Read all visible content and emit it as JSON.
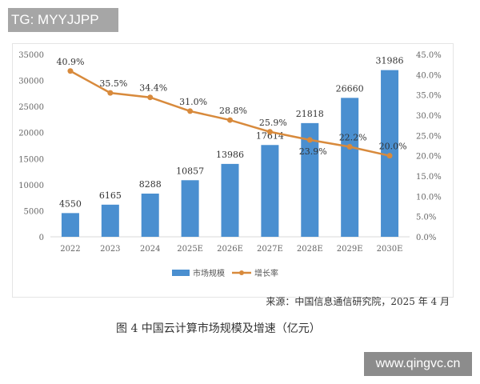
{
  "overlay": {
    "tg_label": "TG: MYYJJPP",
    "site_watermark": "www.qingvc.cn"
  },
  "chart_data": {
    "type": "bar+line",
    "categories": [
      "2022",
      "2023",
      "2024",
      "2025E",
      "2026E",
      "2027E",
      "2028E",
      "2029E",
      "2030E"
    ],
    "series": [
      {
        "name": "市场规模",
        "type": "bar",
        "axis": "left",
        "color": "#4a8fd0",
        "values": [
          4550,
          6165,
          8288,
          10857,
          13986,
          17614,
          21818,
          26660,
          31986
        ]
      },
      {
        "name": "增长率",
        "type": "line",
        "axis": "right",
        "color": "#d88a3c",
        "values": [
          40.9,
          35.5,
          34.4,
          31.0,
          28.8,
          25.9,
          23.9,
          22.2,
          20.0
        ],
        "labels": [
          "40.9%",
          "35.5%",
          "34.4%",
          "31.0%",
          "28.8%",
          "25.9%",
          "23.9%",
          "22.2%",
          "20.0%"
        ]
      }
    ],
    "ylim": [
      0,
      35000
    ],
    "yticks": [
      "0",
      "5000",
      "10000",
      "15000",
      "20000",
      "25000",
      "30000",
      "35000"
    ],
    "y2lim": [
      0,
      45
    ],
    "y2ticks": [
      "0.0%",
      "5.0%",
      "10.0%",
      "15.0%",
      "20.0%",
      "25.0%",
      "30.0%",
      "35.0%",
      "40.0%",
      "45.0%"
    ],
    "legend": "bottom",
    "grid": false,
    "source": "来源：中国信息通信研究院，2025 年 4 月",
    "title": "图 4  中国云计算市场规模及增速（亿元）"
  }
}
